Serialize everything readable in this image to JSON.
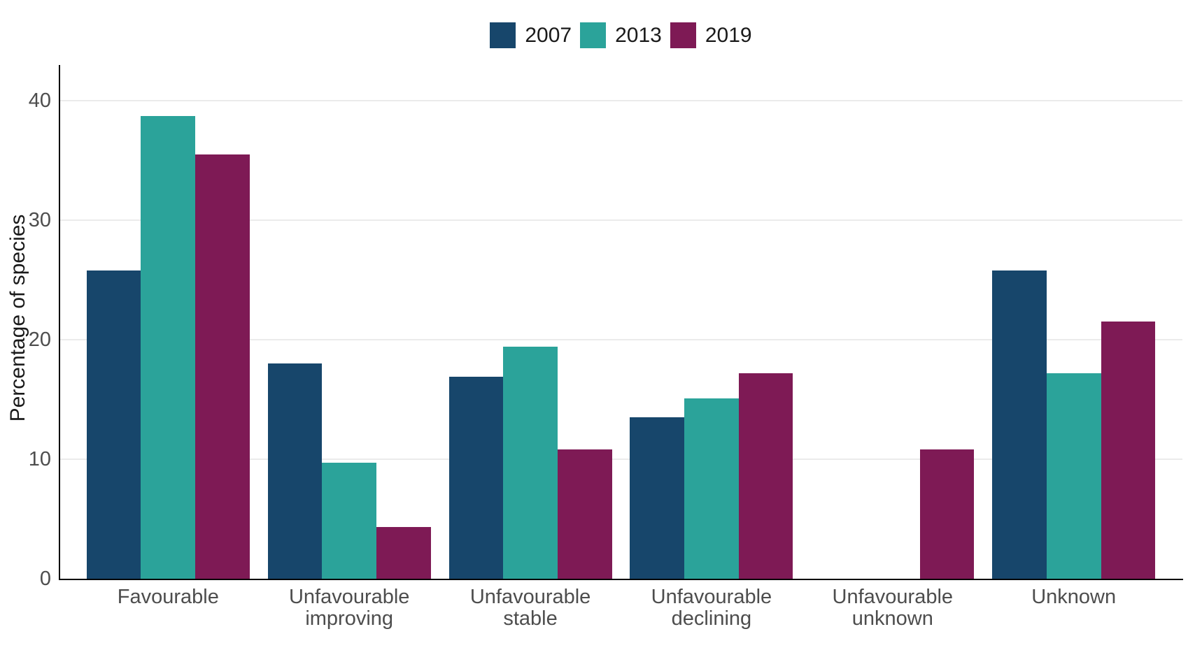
{
  "chart_data": {
    "type": "bar",
    "title": "",
    "xlabel": "",
    "ylabel": "Percentage of species",
    "categories": [
      "Favourable",
      "Unfavourable improving",
      "Unfavourable stable",
      "Unfavourable declining",
      "Unfavourable unknown",
      "Unknown"
    ],
    "series": [
      {
        "name": "2007",
        "color": "#17466B",
        "values": [
          25.8,
          18.0,
          16.9,
          13.5,
          0,
          25.8
        ]
      },
      {
        "name": "2013",
        "color": "#2BA39A",
        "values": [
          38.7,
          9.7,
          19.4,
          15.1,
          0,
          17.2
        ]
      },
      {
        "name": "2019",
        "color": "#7E1A55",
        "values": [
          35.5,
          4.3,
          10.8,
          17.2,
          10.8,
          21.5
        ]
      }
    ],
    "ylim": [
      0,
      43
    ],
    "yticks": [
      0,
      10,
      20,
      30,
      40
    ],
    "grid": "horizontal-major-only",
    "legend_position": "top-center",
    "background_color": "#FFFFFF",
    "gridline_color": "#EBEBEB",
    "axis_line_color": "#000000",
    "tick_label_color": "#4D4D4D"
  }
}
